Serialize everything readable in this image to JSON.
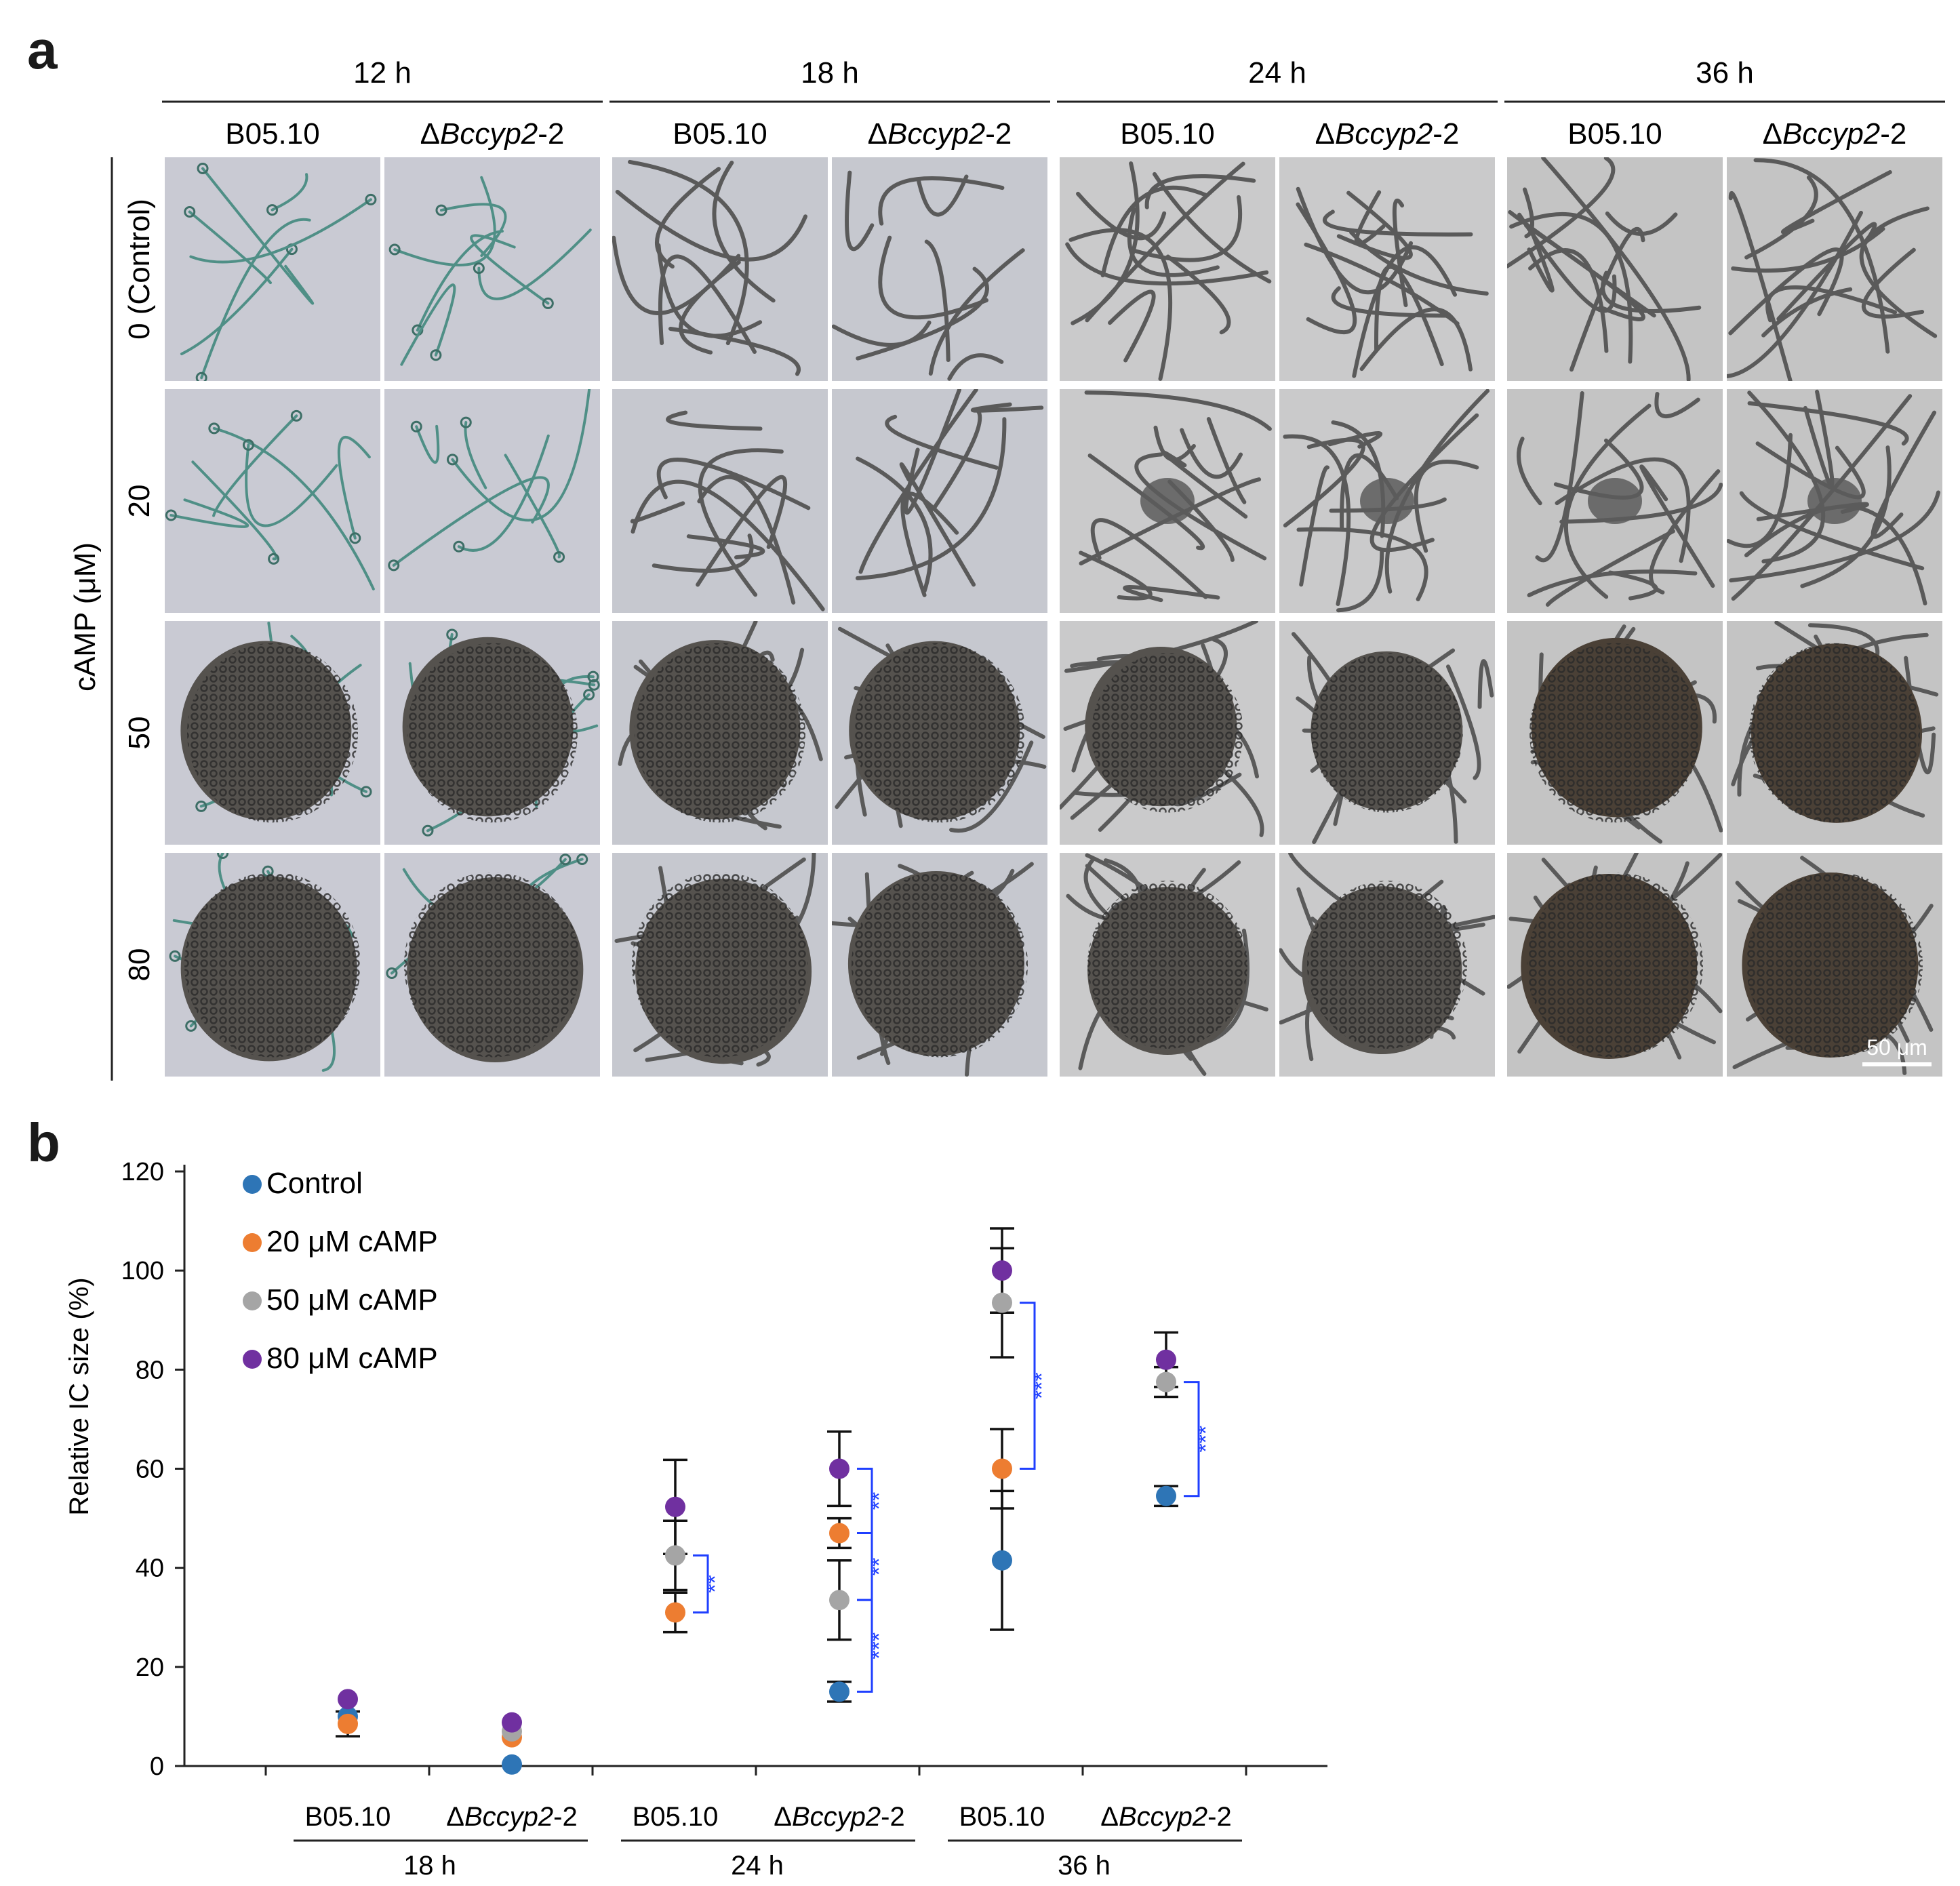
{
  "panel_a": {
    "letter": "a",
    "time_headers": [
      "12 h",
      "18 h",
      "24 h",
      "36 h"
    ],
    "strains": [
      "B05.10",
      "ΔBccyp2-2"
    ],
    "strain_italic_part": "Bccyp2",
    "row_axis_label": "cAMP (μM)",
    "rows": [
      "0 (Control)",
      "20",
      "50",
      "80"
    ],
    "scale_bar": "50 μm",
    "image_stage": [
      [
        "hyphae",
        "hyphae",
        "hyphae",
        "hyphae"
      ],
      [
        "hyphae",
        "hyphae",
        "early",
        "early"
      ],
      [
        "cushion",
        "cushion",
        "cushion",
        "cushion"
      ],
      [
        "cushion",
        "cushion",
        "cushion",
        "cushion"
      ]
    ]
  },
  "panel_b": {
    "letter": "b",
    "legend": [
      "Control",
      "20 μM cAMP",
      "50 μM cAMP",
      "80 μM cAMP"
    ],
    "colors": {
      "Control": "#2e75b6",
      "20 μM cAMP": "#ed7d31",
      "50 μM cAMP": "#a5a5a5",
      "80 μM cAMP": "#7030a0"
    },
    "significance_color": "#1f3fff"
  },
  "chart_data": {
    "type": "scatter",
    "title": "",
    "ylabel": "Relative IC size (%)",
    "xlabel": "",
    "ylim": [
      0,
      120
    ],
    "yticks": [
      0,
      20,
      40,
      60,
      80,
      100,
      120
    ],
    "grid": false,
    "legend_position": "top-left",
    "categories": [
      "B05.10",
      "ΔBccyp2-2",
      "B05.10",
      "ΔBccyp2-2",
      "B05.10",
      "ΔBccyp2-2"
    ],
    "groups": [
      {
        "label": "18 h",
        "categories": [
          0,
          1
        ]
      },
      {
        "label": "24 h",
        "categories": [
          2,
          3
        ]
      },
      {
        "label": "36 h",
        "categories": [
          4,
          5
        ]
      }
    ],
    "series": [
      {
        "name": "Control",
        "values": [
          10,
          0.3,
          null,
          15,
          41.5,
          54.5
        ],
        "err": [
          null,
          null,
          null,
          2,
          14,
          2
        ]
      },
      {
        "name": "20 μM cAMP",
        "values": [
          8.5,
          5.8,
          31,
          47,
          60,
          null
        ],
        "err": [
          2.5,
          null,
          4,
          3,
          8,
          null
        ]
      },
      {
        "name": "50 μM cAMP",
        "values": [
          null,
          7,
          42.5,
          33.5,
          93.5,
          77.5
        ],
        "err": [
          null,
          null,
          7,
          8,
          11,
          3
        ]
      },
      {
        "name": "80 μM cAMP",
        "values": [
          13.5,
          8.8,
          52.3,
          60,
          100,
          82
        ],
        "err": [
          null,
          null,
          9.5,
          7.5,
          8.5,
          5.5
        ]
      }
    ],
    "significance": [
      {
        "category": 2,
        "from": 42.5,
        "to": 31,
        "label": "**"
      },
      {
        "category": 3,
        "from": 60,
        "to": 47,
        "label": "**"
      },
      {
        "category": 3,
        "from": 47,
        "to": 33.5,
        "label": "**"
      },
      {
        "category": 3,
        "from": 33.5,
        "to": 15,
        "label": "***"
      },
      {
        "category": 4,
        "from": 93.5,
        "to": 60,
        "label": "***"
      },
      {
        "category": 5,
        "from": 77.5,
        "to": 54.5,
        "label": "***"
      }
    ]
  }
}
